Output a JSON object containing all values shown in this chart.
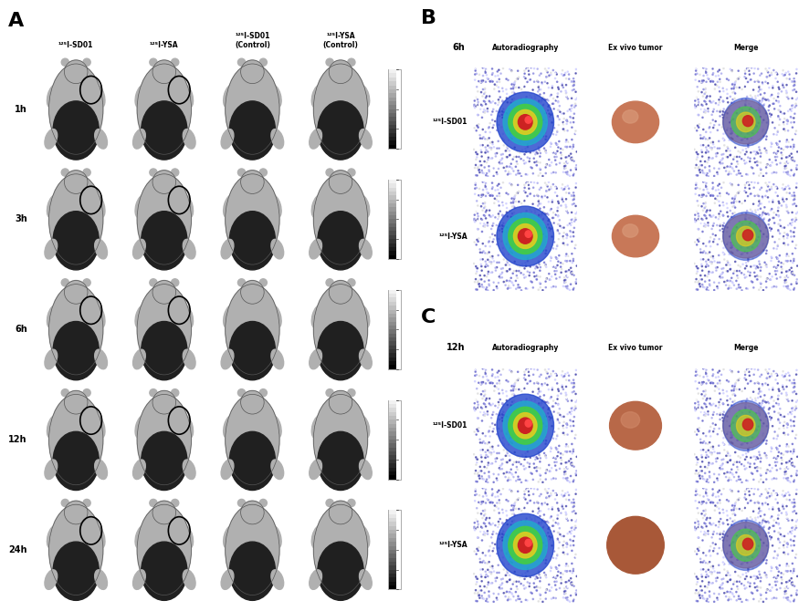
{
  "panel_A_label": "A",
  "panel_B_label": "B",
  "panel_C_label": "C",
  "col_headers": [
    "¹²⁵I-SD01",
    "¹²⁵I-YSA",
    "¹²⁵I-SD01\n(Control)",
    "¹²⁵I-YSA\n(Control)"
  ],
  "row_labels": [
    "1h",
    "3h",
    "6h",
    "12h",
    "24h"
  ],
  "B_time_label": "6h",
  "C_time_label": "12h",
  "B_col_headers": [
    "Autoradiography",
    "Ex vivo tumor",
    "Merge"
  ],
  "C_col_headers": [
    "Autoradiography",
    "Ex vivo tumor",
    "Merge"
  ],
  "B_row_labels": [
    "¹²⁵I-SD01",
    "¹²⁵I-YSA"
  ],
  "C_row_labels": [
    "¹²⁵I-SD01",
    "¹²⁵I-YSA"
  ],
  "background_color": "#ffffff",
  "text_color": "#000000",
  "figure_width": 8.86,
  "figure_height": 6.7
}
